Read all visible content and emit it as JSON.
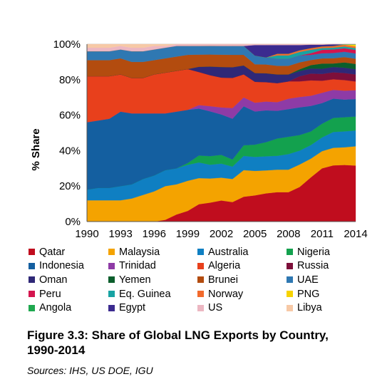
{
  "chart_data": {
    "type": "area",
    "stacked": true,
    "percent": true,
    "title": "",
    "xlabel": "",
    "ylabel": "% Share",
    "ylim": [
      0,
      100
    ],
    "y_ticks": [
      "0%",
      "20%",
      "40%",
      "60%",
      "80%",
      "100%"
    ],
    "x_ticks": [
      "1990",
      "1993",
      "1996",
      "1999",
      "2002",
      "2005",
      "2008",
      "2011",
      "2014"
    ],
    "grid": true,
    "legend_position": "bottom",
    "x": [
      1990,
      1991,
      1992,
      1993,
      1994,
      1995,
      1996,
      1997,
      1998,
      1999,
      2000,
      2001,
      2002,
      2003,
      2004,
      2005,
      2006,
      2007,
      2008,
      2009,
      2010,
      2011,
      2012,
      2013,
      2014
    ],
    "series": [
      {
        "name": "Qatar",
        "color": "#c00d1e",
        "values": [
          0,
          0,
          0,
          0,
          0,
          0,
          0,
          1,
          4,
          6,
          10,
          11,
          12,
          11,
          14,
          15,
          16,
          17,
          17,
          20,
          26,
          31,
          32,
          32,
          32
        ]
      },
      {
        "name": "Malaysia",
        "color": "#f4a300",
        "values": [
          12,
          12,
          12,
          12,
          13,
          15,
          17,
          19,
          17,
          17,
          15,
          14,
          13,
          13,
          15,
          14,
          13,
          13,
          13,
          13,
          11,
          10,
          10,
          10,
          11
        ]
      },
      {
        "name": "Australia",
        "color": "#0f7fc2",
        "values": [
          6,
          7,
          7,
          8,
          8,
          9,
          9,
          9,
          9,
          9,
          9,
          8,
          8,
          7,
          8,
          8,
          8,
          8,
          9,
          8,
          8,
          8,
          9,
          9,
          9
        ]
      },
      {
        "name": "Nigeria",
        "color": "#13a14e",
        "values": [
          0,
          0,
          0,
          0,
          0,
          0,
          0,
          0,
          0,
          1,
          4,
          5,
          5,
          4,
          6,
          7,
          8,
          10,
          10,
          9,
          8,
          8,
          8,
          8,
          8
        ]
      },
      {
        "name": "Indonesia",
        "color": "#145fa0",
        "values": [
          38,
          38,
          39,
          42,
          40,
          37,
          35,
          32,
          32,
          30,
          27,
          26,
          23,
          23,
          22,
          19,
          18,
          16,
          16,
          16,
          15,
          12,
          11,
          10,
          10
        ]
      },
      {
        "name": "Trinidad",
        "color": "#8e3ba6",
        "values": [
          0,
          0,
          0,
          0,
          0,
          0,
          0,
          0,
          0,
          0,
          2,
          3,
          4,
          6,
          5,
          5,
          5,
          5,
          6,
          6,
          6,
          6,
          5,
          5,
          5
        ]
      },
      {
        "name": "Algeria",
        "color": "#e8401c",
        "values": [
          26,
          25,
          24,
          21,
          20,
          20,
          22,
          23,
          23,
          23,
          19,
          18,
          17,
          17,
          13,
          12,
          11,
          11,
          10,
          9,
          9,
          7,
          6,
          6,
          5
        ]
      },
      {
        "name": "Russia",
        "color": "#7d0f3a",
        "values": [
          0,
          0,
          0,
          0,
          0,
          0,
          0,
          0,
          0,
          0,
          0,
          0,
          0,
          0,
          0,
          0,
          0,
          0,
          0,
          3,
          4,
          4,
          4,
          4,
          4
        ]
      },
      {
        "name": "Oman",
        "color": "#2f2877",
        "values": [
          0,
          0,
          0,
          0,
          0,
          0,
          0,
          0,
          0,
          0,
          3,
          5,
          6,
          6,
          5,
          5,
          5,
          5,
          4,
          3,
          3,
          3,
          3,
          3,
          3
        ]
      },
      {
        "name": "Yemen",
        "color": "#0b5e2c",
        "values": [
          0,
          0,
          0,
          0,
          0,
          0,
          0,
          0,
          0,
          0,
          0,
          0,
          0,
          0,
          0,
          0,
          0,
          0,
          0,
          1,
          2,
          3,
          2,
          3,
          3
        ]
      },
      {
        "name": "Brunei",
        "color": "#b34c0f",
        "values": [
          9,
          9,
          9,
          9,
          9,
          9,
          8,
          8,
          8,
          8,
          7,
          7,
          7,
          7,
          6,
          5,
          5,
          5,
          5,
          4,
          3,
          3,
          3,
          3,
          3
        ]
      },
      {
        "name": "UAE",
        "color": "#2f78b2",
        "values": [
          5,
          5,
          5,
          5,
          6,
          6,
          6,
          6,
          6,
          5,
          5,
          5,
          5,
          5,
          5,
          5,
          4,
          4,
          4,
          4,
          3,
          3,
          3,
          3,
          3
        ]
      },
      {
        "name": "Peru",
        "color": "#d4154e",
        "values": [
          0,
          0,
          0,
          0,
          0,
          0,
          0,
          0,
          0,
          0,
          0,
          0,
          0,
          0,
          0,
          0,
          0,
          0,
          0,
          0,
          1,
          2,
          2,
          2,
          2
        ]
      },
      {
        "name": "Eq. Guinea",
        "color": "#17a3a3",
        "values": [
          0,
          0,
          0,
          0,
          0,
          0,
          0,
          0,
          0,
          0,
          0,
          0,
          0,
          0,
          0,
          0,
          0,
          2,
          2,
          2,
          2,
          1,
          1,
          1,
          1
        ]
      },
      {
        "name": "Norway",
        "color": "#f26a2c",
        "values": [
          0,
          0,
          0,
          0,
          0,
          0,
          0,
          0,
          0,
          0,
          0,
          0,
          0,
          0,
          0,
          0,
          0,
          1,
          1,
          1,
          1,
          1,
          1,
          1,
          1
        ]
      },
      {
        "name": "PNG",
        "color": "#f7d300",
        "values": [
          0,
          0,
          0,
          0,
          0,
          0,
          0,
          0,
          0,
          0,
          0,
          0,
          0,
          0,
          0,
          0,
          0,
          0,
          0,
          0,
          0,
          0,
          0,
          0,
          1
        ]
      },
      {
        "name": "Angola",
        "color": "#1fa84f",
        "values": [
          0,
          0,
          0,
          0,
          0,
          0,
          0,
          0,
          0,
          0,
          0,
          0,
          0,
          0,
          0,
          0,
          0,
          0,
          0,
          0,
          0,
          0,
          0,
          0.3,
          0.3
        ]
      },
      {
        "name": "Egypt",
        "color": "#3b2a8f",
        "values": [
          0,
          0,
          0,
          0,
          0,
          0,
          0,
          0,
          0,
          0,
          0,
          0,
          0,
          0,
          0,
          6,
          7,
          5,
          5,
          3,
          2,
          1,
          1,
          0,
          0
        ]
      },
      {
        "name": "US",
        "color": "#ecb7c2",
        "values": [
          2,
          2,
          2,
          2,
          2,
          2,
          2,
          1,
          1,
          1,
          1,
          1,
          1,
          1,
          1,
          0.5,
          0.5,
          0.5,
          0.5,
          0.5,
          0.3,
          0.3,
          0,
          0,
          0
        ]
      },
      {
        "name": "Libya",
        "color": "#f7c9a6",
        "values": [
          2,
          2,
          2,
          1,
          2,
          2,
          1,
          1,
          0,
          0,
          0,
          0,
          0,
          0,
          0,
          0,
          0,
          0,
          0,
          0,
          0,
          0,
          0,
          0,
          0
        ]
      }
    ]
  },
  "caption": {
    "line1": "Figure 3.3: Share of Global LNG Exports by Country,",
    "line2": "1990-2014"
  },
  "sources": "Sources: IHS, US DOE, IGU"
}
